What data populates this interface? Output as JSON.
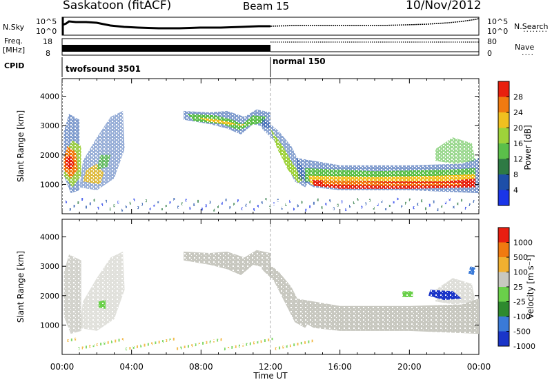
{
  "header": {
    "station": "Saskatoon (fitACF)",
    "beam": "Beam 15",
    "date": "10/Nov/2012"
  },
  "panels": {
    "sky_label": "N.Sky",
    "sky_ticks": [
      "10^5",
      "10^0"
    ],
    "search_label": "N.Search",
    "freq_label_1": "Freq.",
    "freq_label_2": "[MHz]",
    "freq_ticks": [
      "18",
      "8"
    ],
    "nave_label": "Nave",
    "nave_ticks": [
      "80",
      "0"
    ],
    "cpid_label": "CPID",
    "cpid_left": "twofsound 3501",
    "cpid_right": "normal 150"
  },
  "chart_data": [
    {
      "type": "heatmap",
      "quantity": "Power",
      "xlabel": "Time UT",
      "ylabel": "Slant Range [km]",
      "xlim": [
        "00:00",
        "24:00"
      ],
      "ylim": [
        0,
        4600
      ],
      "yticks": [
        1000,
        2000,
        3000,
        4000
      ],
      "xticks": [
        "00:00",
        "04:00",
        "08:00",
        "12:00",
        "16:00",
        "20:00",
        "00:00"
      ],
      "colorbar_label": "Power [dB]",
      "colorbar_ticks": [
        "28",
        "24",
        "20",
        "16",
        "12",
        "8",
        "4"
      ],
      "colors": [
        "#1a35e8",
        "#1e4fa8",
        "#2e7a44",
        "#5bbf4a",
        "#9ed23a",
        "#f0c020",
        "#f07a10",
        "#e8200e"
      ],
      "regions": [
        {
          "t_start": 0.0,
          "t_end": 1.0,
          "r_min": 700,
          "r_max": 3400,
          "level": "high"
        },
        {
          "t_start": 1.0,
          "t_end": 3.6,
          "r_min": 800,
          "r_max": 3500,
          "level": "low"
        },
        {
          "t_start": 7.0,
          "t_end": 12.0,
          "r_min": 2800,
          "r_max": 3600,
          "level": "medium"
        },
        {
          "t_start": 12.0,
          "t_end": 14.0,
          "r_min": 900,
          "r_max": 3200,
          "level": "medium"
        },
        {
          "t_start": 14.0,
          "t_end": 24.0,
          "r_min": 750,
          "r_max": 1700,
          "level": "high"
        }
      ]
    },
    {
      "type": "heatmap",
      "quantity": "Velocity",
      "xlabel": "Time UT",
      "ylabel": "Slant Range [km]",
      "xlim": [
        "00:00",
        "24:00"
      ],
      "ylim": [
        0,
        4600
      ],
      "yticks": [
        1000,
        2000,
        3000,
        4000
      ],
      "xticks": [
        "00:00",
        "04:00",
        "08:00",
        "12:00",
        "16:00",
        "20:00",
        "00:00"
      ],
      "colorbar_label": "Velocity [m s⁻¹]",
      "colorbar_ticks": [
        "1000",
        "500",
        "100",
        "25",
        "-25",
        "-100",
        "-500",
        "-1000"
      ],
      "colors": [
        "#1a35c8",
        "#3a7ad8",
        "#2e8a2e",
        "#6ad04a",
        "#c8c8c0",
        "#f0b030",
        "#f07a10",
        "#e81e10"
      ],
      "regions": [
        {
          "t_start": 0.0,
          "t_end": 3.6,
          "r_min": 800,
          "r_max": 3500,
          "level": "near-zero"
        },
        {
          "t_start": 7.0,
          "t_end": 14.0,
          "r_min": 1000,
          "r_max": 3600,
          "level": "near-zero"
        },
        {
          "t_start": 14.0,
          "t_end": 24.0,
          "r_min": 750,
          "r_max": 1700,
          "level": "near-zero"
        }
      ]
    }
  ]
}
